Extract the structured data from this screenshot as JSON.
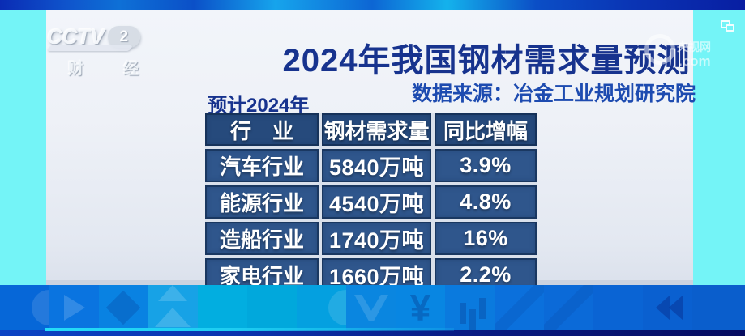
{
  "channel": {
    "network": "CCTV",
    "number": "2",
    "name": "财 经"
  },
  "header": {
    "title": "2024年我国钢材需求量预测",
    "source": "数据来源：冶金工业规划研究院"
  },
  "watermark": {
    "name": "央视网",
    "domain": ".com"
  },
  "table_note": "预计2024年",
  "chart_data": {
    "type": "table",
    "title": "2024年我国钢材需求量预测",
    "source": "数据来源：冶金工业规划研究院",
    "note": "预计2024年",
    "columns": [
      "行　业",
      "钢材需求量",
      "同比增幅"
    ],
    "rows": [
      [
        "汽车行业",
        "5840万吨",
        "3.9%"
      ],
      [
        "能源行业",
        "4540万吨",
        "4.8%"
      ],
      [
        "造船行业",
        "1740万吨",
        "16%"
      ],
      [
        "家电行业",
        "1660万吨",
        "2.2%"
      ]
    ],
    "industries": [
      "汽车行业",
      "能源行业",
      "造船行业",
      "家电行业"
    ],
    "demand_wan_tons": [
      5840,
      4540,
      1740,
      1660
    ],
    "yoy_growth_pct": [
      3.9,
      4.8,
      16,
      2.2
    ],
    "units": {
      "demand": "万吨",
      "growth": "%"
    }
  },
  "colors": {
    "title_blue": "#17338e",
    "subtitle_blue": "#1d4bb0",
    "table_header_bg": "#264a7c",
    "table_row_bg": "#2f568c",
    "side_stripe_cyan": "#74f4f7",
    "band_base_blue": "#0a74e0",
    "footer_navy": "#091c84"
  },
  "decor": {
    "band_tiles": [
      {
        "shape": "half-circle",
        "color": "#0667d8"
      },
      {
        "shape": "play",
        "color": "#0a74e0"
      },
      {
        "shape": "diamond",
        "color": "#0982e2"
      },
      {
        "shape": "mountains",
        "color": "#17a2e6"
      },
      {
        "shape": "plain",
        "color": "#02aee0"
      },
      {
        "shape": "plain",
        "color": "#01a8dc"
      },
      {
        "shape": "half-circle",
        "color": "#04a0e0"
      },
      {
        "shape": "vee",
        "color": "#0a86e0"
      },
      {
        "shape": "yen",
        "color": "#0886e2",
        "glyph": "¥"
      },
      {
        "shape": "bars",
        "color": "#0a7ade"
      },
      {
        "shape": "diag",
        "color": "#0b70dc"
      },
      {
        "shape": "diag",
        "color": "#0b6ad8"
      },
      {
        "shape": "plain",
        "color": "#0a64d4"
      },
      {
        "shape": "chevrons",
        "color": "#0a60d0"
      },
      {
        "shape": "plain",
        "color": "#0a5ecc"
      }
    ]
  }
}
